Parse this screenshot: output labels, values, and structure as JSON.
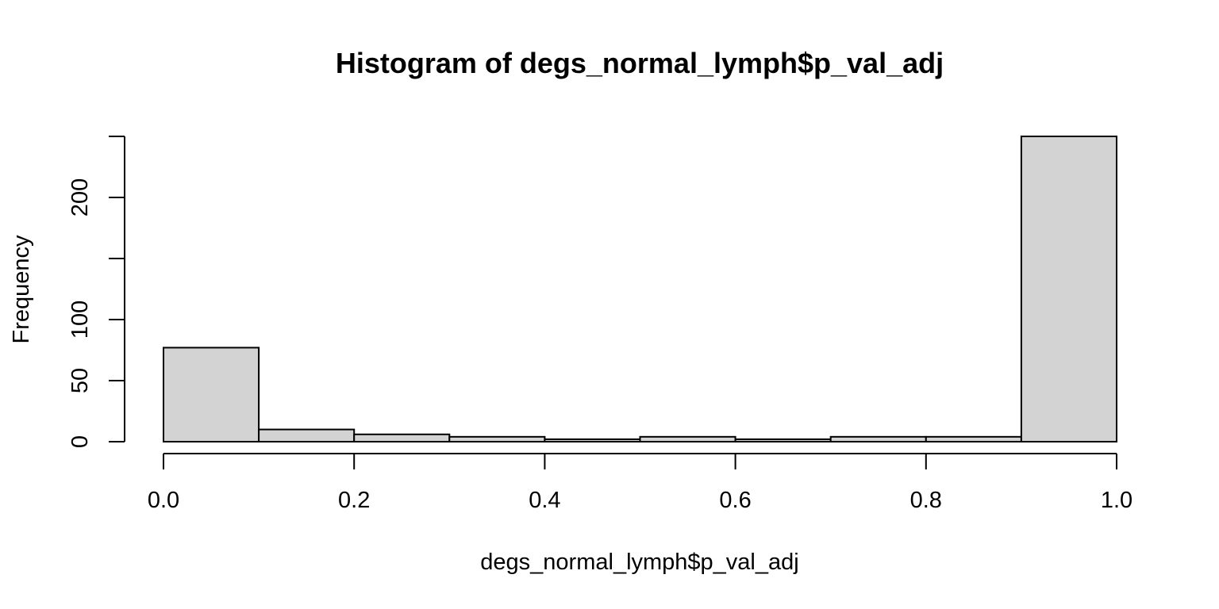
{
  "chart_data": {
    "type": "bar",
    "title": "Histogram of degs_normal_lymph$p_val_adj",
    "xlabel": "degs_normal_lymph$p_val_adj",
    "ylabel": "Frequency",
    "bin_edges": [
      0.0,
      0.1,
      0.2,
      0.3,
      0.4,
      0.5,
      0.6,
      0.7,
      0.8,
      0.9,
      1.0
    ],
    "values": [
      77,
      10,
      6,
      4,
      2,
      4,
      2,
      4,
      4,
      250
    ],
    "xlim": [
      0.0,
      1.0
    ],
    "ylim": [
      0,
      250
    ],
    "x_ticks": [
      0.0,
      0.2,
      0.4,
      0.6,
      0.8,
      1.0
    ],
    "x_tick_labels": [
      "0.0",
      "0.2",
      "0.4",
      "0.6",
      "0.8",
      "1.0"
    ],
    "y_ticks": [
      0,
      50,
      100,
      150,
      200,
      250
    ],
    "y_tick_labels": [
      "0",
      "50",
      "100",
      "",
      "200",
      ""
    ],
    "grid": false,
    "bar_fill": "#d3d3d3",
    "bar_stroke": "#000000"
  }
}
